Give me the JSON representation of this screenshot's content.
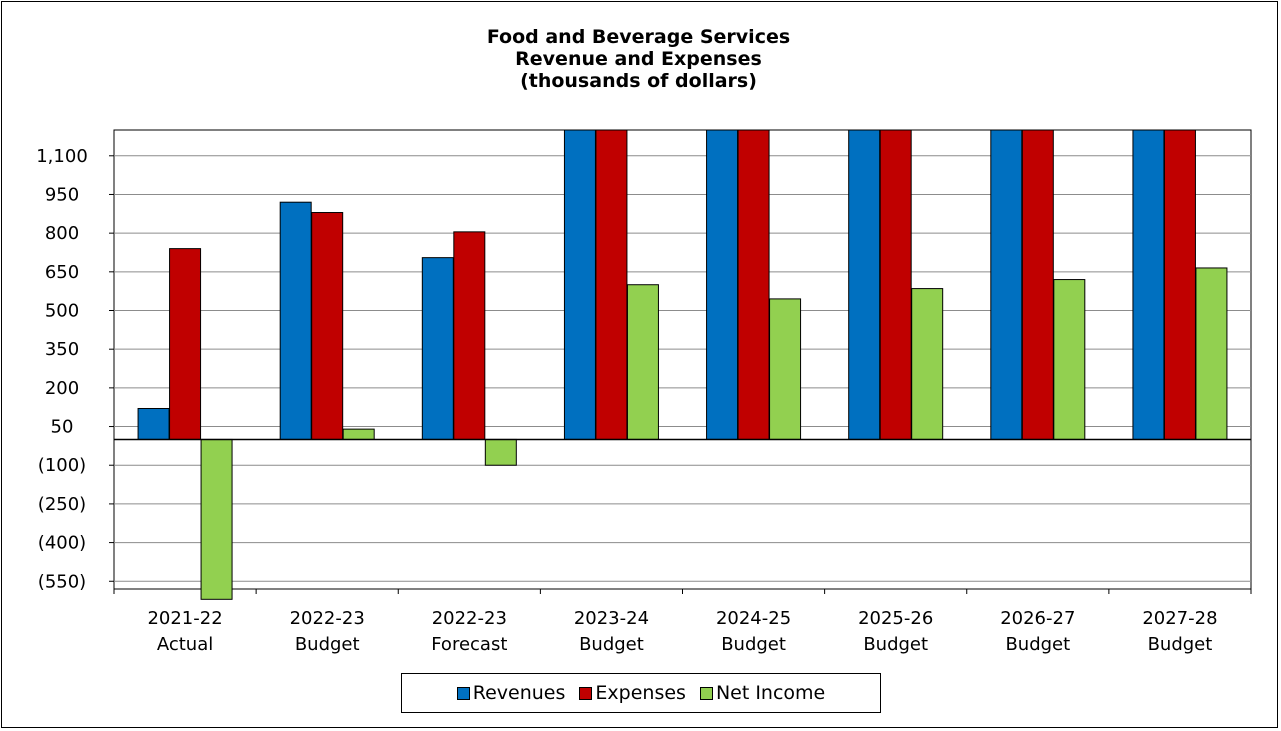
{
  "chart_data": {
    "type": "bar",
    "title": [
      "Food and Beverage Services",
      "Revenue and Expenses",
      "(thousands of dollars)"
    ],
    "categories": [
      [
        "2021-22",
        "Actual"
      ],
      [
        "2022-23",
        "Budget"
      ],
      [
        "2022-23",
        "Forecast"
      ],
      [
        "2023-24",
        "Budget"
      ],
      [
        "2024-25",
        "Budget"
      ],
      [
        "2025-26",
        "Budget"
      ],
      [
        "2026-27",
        "Budget"
      ],
      [
        "2027-28",
        "Budget"
      ]
    ],
    "series": [
      {
        "name": "Revenues",
        "color": "#0070c0",
        "values": [
          120,
          920,
          705,
          1200,
          1200,
          1200,
          1200,
          1200
        ]
      },
      {
        "name": "Expenses",
        "color": "#c00000",
        "values": [
          740,
          880,
          805,
          1200,
          1200,
          1200,
          1200,
          1200
        ]
      },
      {
        "name": "Net Income",
        "color": "#92d050",
        "values": [
          -620,
          40,
          -100,
          600,
          545,
          585,
          620,
          665
        ]
      }
    ],
    "ylim": [
      -580,
      1200
    ],
    "yticks": [
      1100,
      950,
      800,
      650,
      500,
      350,
      200,
      50,
      -100,
      -250,
      -400,
      -550
    ],
    "ytick_labels": [
      "1,100",
      "950",
      "800",
      "650",
      "500",
      "350",
      "200",
      "50",
      "(100)",
      "(250)",
      "(400)",
      "(550)"
    ],
    "grid": true,
    "legend_position": "bottom"
  }
}
